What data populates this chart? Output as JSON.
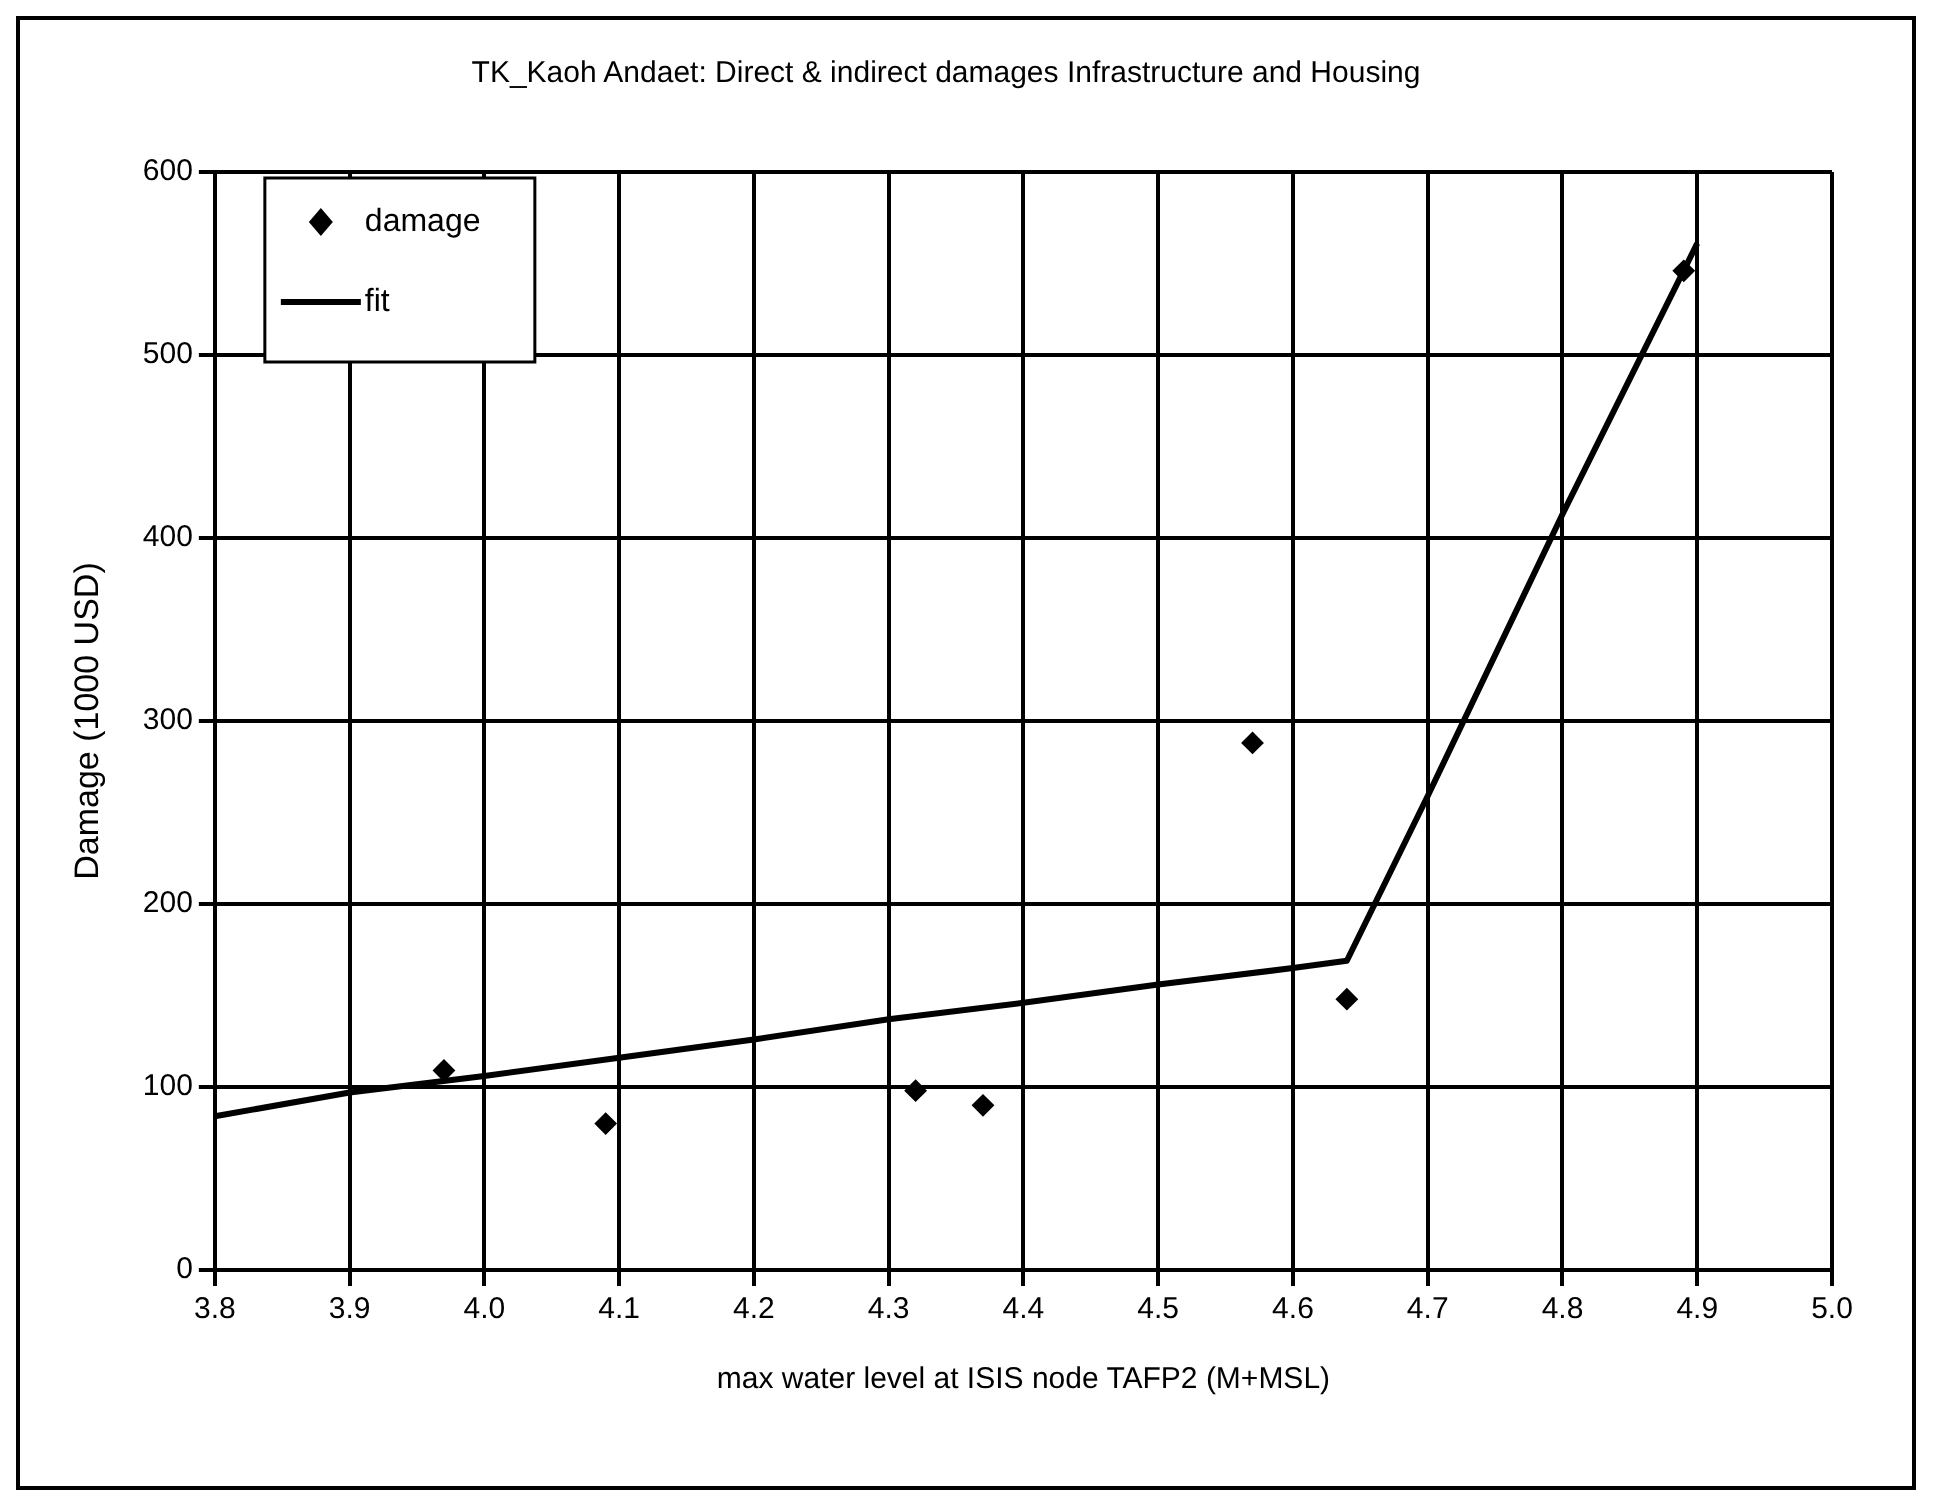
{
  "chart_data": {
    "type": "scatter",
    "title": "TK_Kaoh Andaet: Direct & indirect damages Infrastructure and Housing",
    "xlabel": "max water level at ISIS node TAFP2 (M+MSL)",
    "ylabel": "Damage (1000 USD)",
    "series": [
      {
        "name": "damage",
        "color": "#000000",
        "marker": "diamond",
        "x": [
          3.97,
          4.09,
          4.32,
          4.37,
          4.57,
          4.64,
          4.89
        ],
        "values": [
          109,
          80,
          98,
          90,
          288,
          148,
          546
        ]
      },
      {
        "name": "fit",
        "type": "line",
        "color": "#000000",
        "marker": "none",
        "line_style": "solid",
        "x": [
          3.8,
          3.9,
          4.0,
          4.1,
          4.2,
          4.3,
          4.4,
          4.5,
          4.6,
          4.64,
          4.7,
          4.8,
          4.9
        ],
        "values": [
          84,
          97,
          106,
          116,
          126,
          137,
          146,
          156,
          165,
          169,
          259,
          413,
          561
        ]
      }
    ],
    "xlim": [
      3.8,
      5.0
    ],
    "xticks": [
      {
        "value": 3.8,
        "label": "3.8"
      },
      {
        "value": 3.9,
        "label": "3.9"
      },
      {
        "value": 4.0,
        "label": "4.0"
      },
      {
        "value": 4.1,
        "label": "4.1"
      },
      {
        "value": 4.2,
        "label": "4.2"
      },
      {
        "value": 4.3,
        "label": "4.3"
      },
      {
        "value": 4.4,
        "label": "4.4"
      },
      {
        "value": 4.5,
        "label": "4.5"
      },
      {
        "value": 4.6,
        "label": "4.6"
      },
      {
        "value": 4.7,
        "label": "4.7"
      },
      {
        "value": 4.8,
        "label": "4.8"
      },
      {
        "value": 4.9,
        "label": "4.9"
      },
      {
        "value": 5.0,
        "label": "5.0"
      }
    ],
    "ylim": [
      0,
      600
    ],
    "yticks": [
      0,
      100,
      200,
      300,
      400,
      500,
      600
    ],
    "grid": true,
    "legend": "top left"
  }
}
